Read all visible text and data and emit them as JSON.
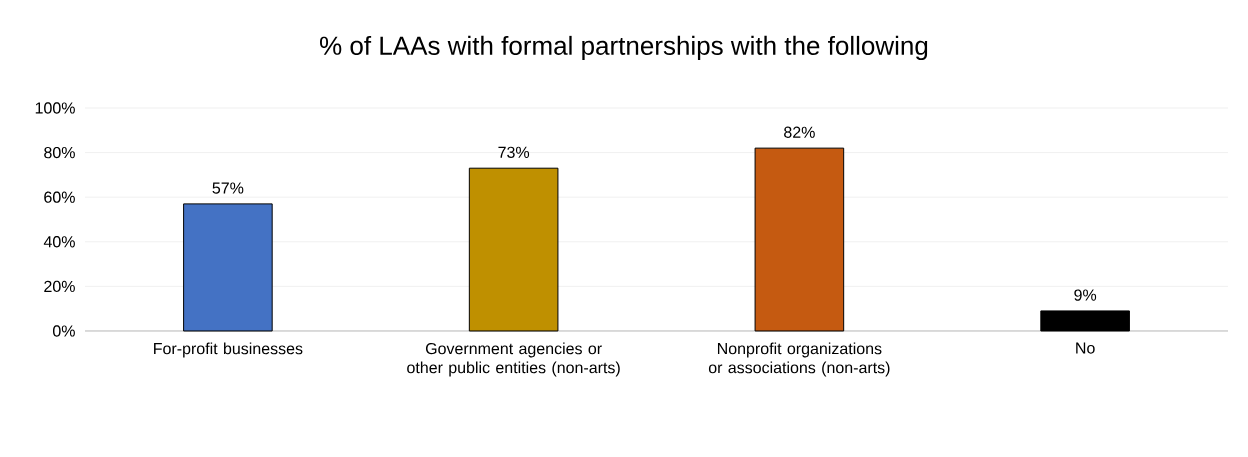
{
  "chart_data": {
    "type": "bar",
    "title": "% of LAAs with formal partnerships with the following",
    "categories": [
      "For-profit businesses",
      "Government agencies or other public entities (non-arts)",
      "Nonprofit organizations or associations (non-arts)",
      "No"
    ],
    "values": [
      57,
      73,
      82,
      9
    ],
    "colors": [
      "#4472c4",
      "#bf9000",
      "#c55a11",
      "#000000"
    ],
    "value_labels": [
      "57%",
      "73%",
      "82%",
      "9%"
    ],
    "ylim": [
      0,
      100
    ],
    "yticks": [
      {
        "value": 0,
        "label": "0%"
      },
      {
        "value": 20,
        "label": "20%"
      },
      {
        "value": 40,
        "label": "40%"
      },
      {
        "value": 60,
        "label": "60%"
      },
      {
        "value": 80,
        "label": "80%"
      },
      {
        "value": 100,
        "label": "100%"
      }
    ],
    "grid": "y"
  }
}
